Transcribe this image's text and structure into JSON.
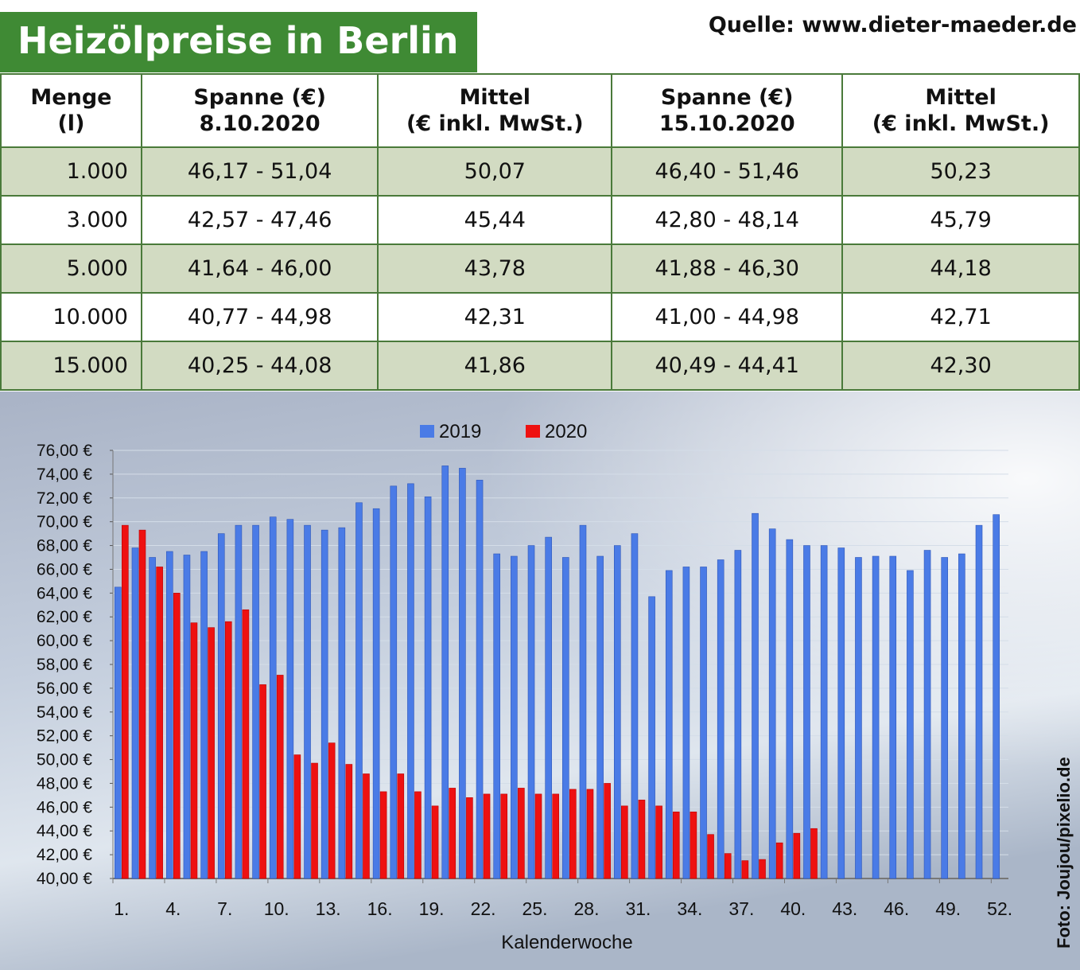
{
  "header": {
    "title": "Heizölpreise in Berlin",
    "source": "Quelle: www.dieter-maeder.de"
  },
  "table": {
    "headers": [
      [
        "Menge",
        "(l)"
      ],
      [
        "Spanne (€)",
        "8.10.2020"
      ],
      [
        "Mittel",
        "(€ inkl. MwSt.)"
      ],
      [
        "Spanne (€)",
        "15.10.2020"
      ],
      [
        "Mittel",
        "(€ inkl. MwSt.)"
      ]
    ],
    "rows": [
      [
        "1.000",
        "46,17 - 51,04",
        "50,07",
        "46,40 - 51,46",
        "50,23"
      ],
      [
        "3.000",
        "42,57 - 47,46",
        "45,44",
        "42,80 - 48,14",
        "45,79"
      ],
      [
        "5.000",
        "41,64 - 46,00",
        "43,78",
        "41,88 - 46,30",
        "44,18"
      ],
      [
        "10.000",
        "40,77 - 44,98",
        "42,31",
        "41,00 - 44,98",
        "42,71"
      ],
      [
        "15.000",
        "40,25 - 44,08",
        "41,86",
        "40,49 - 44,41",
        "42,30"
      ]
    ]
  },
  "chart_data": {
    "type": "bar",
    "x_label": "Kalenderwoche",
    "categories": [
      "1.",
      null,
      null,
      "4.",
      null,
      null,
      "7.",
      null,
      null,
      "10.",
      null,
      null,
      "13.",
      null,
      null,
      "16.",
      null,
      null,
      "19.",
      null,
      null,
      "22.",
      null,
      null,
      "25.",
      null,
      null,
      "28.",
      null,
      null,
      "31.",
      null,
      null,
      "34.",
      null,
      null,
      "37.",
      null,
      null,
      "40.",
      null,
      null,
      "43.",
      null,
      null,
      "46.",
      null,
      null,
      "49.",
      null,
      null,
      "52."
    ],
    "series": [
      {
        "name": "2019",
        "color": "#4a7be6",
        "values": [
          64.5,
          67.8,
          67.0,
          67.5,
          67.2,
          67.5,
          69.0,
          69.7,
          69.7,
          70.4,
          70.2,
          69.7,
          69.3,
          69.5,
          71.6,
          71.1,
          73.0,
          73.2,
          72.1,
          74.7,
          74.5,
          73.5,
          67.3,
          67.1,
          68.0,
          68.7,
          67.0,
          69.7,
          67.1,
          68.0,
          69.0,
          63.7,
          65.9,
          66.2,
          66.2,
          66.8,
          67.6,
          70.7,
          69.4,
          68.5,
          68.0,
          68.0,
          67.8,
          67.0,
          67.1,
          67.1,
          65.9,
          67.6,
          67.0,
          67.3,
          69.7,
          70.6
        ]
      },
      {
        "name": "2020",
        "color": "#ee1111",
        "values": [
          69.7,
          69.3,
          66.2,
          64.0,
          61.5,
          61.1,
          61.6,
          62.6,
          56.3,
          57.1,
          50.4,
          49.7,
          51.4,
          49.6,
          48.8,
          47.3,
          48.8,
          47.3,
          46.1,
          47.6,
          46.8,
          47.1,
          47.1,
          47.6,
          47.1,
          47.1,
          47.5,
          47.5,
          48.0,
          46.1,
          46.6,
          46.1,
          45.6,
          45.6,
          43.7,
          42.1,
          41.5,
          41.6,
          43.0,
          43.8,
          44.2,
          null,
          null,
          null,
          null,
          null,
          null,
          null,
          null,
          null,
          null,
          null
        ]
      }
    ],
    "ylim": [
      40,
      76
    ],
    "yticks": [
      {
        "value": 40,
        "label": "40,00 €"
      },
      {
        "value": 42,
        "label": "42,00 €"
      },
      {
        "value": 44,
        "label": "44,00 €"
      },
      {
        "value": 46,
        "label": "46,00 €"
      },
      {
        "value": 48,
        "label": "48,00 €"
      },
      {
        "value": 50,
        "label": "50,00 €"
      },
      {
        "value": 52,
        "label": "52,00 €"
      },
      {
        "value": 54,
        "label": "54,00 €"
      },
      {
        "value": 56,
        "label": "56,00 €"
      },
      {
        "value": 58,
        "label": "58,00 €"
      },
      {
        "value": 60,
        "label": "60,00 €"
      },
      {
        "value": 62,
        "label": "62,00 €"
      },
      {
        "value": 64,
        "label": "64,00 €"
      },
      {
        "value": 66,
        "label": "66,00 €"
      },
      {
        "value": 68,
        "label": "68,00 €"
      },
      {
        "value": 70,
        "label": "70,00 €"
      },
      {
        "value": 72,
        "label": "72,00 €"
      },
      {
        "value": 74,
        "label": "74,00 €"
      },
      {
        "value": 76,
        "label": "76,00 €"
      }
    ],
    "grid": true
  },
  "credit": "Foto: Joujou/pixelio.de"
}
